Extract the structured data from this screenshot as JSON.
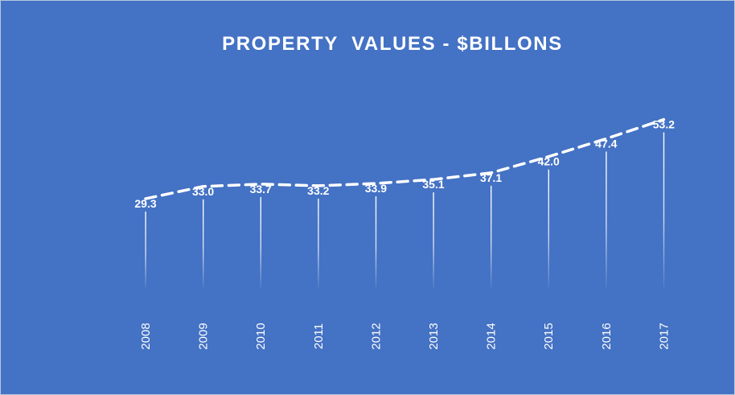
{
  "colors": {
    "background": "#4472c4",
    "line": "#ffffff",
    "text": "#ffffff"
  },
  "chart_data": {
    "type": "line",
    "title": "PROPERTY  VALUES - $BILLONS",
    "xlabel": "",
    "ylabel": "",
    "categories": [
      "2008",
      "2009",
      "2010",
      "2011",
      "2012",
      "2013",
      "2014",
      "2015",
      "2016",
      "2017"
    ],
    "series": [
      {
        "values": [
          29.3,
          33.0,
          33.7,
          33.2,
          33.9,
          35.1,
          37.1,
          42.0,
          47.4,
          53.2
        ],
        "labels": [
          "29.3",
          "33.0",
          "33.7",
          "33.2",
          "33.9",
          "35.1",
          "37.1",
          "42.0",
          "47.4",
          "53.2"
        ]
      }
    ],
    "line_style": "dashed",
    "drop_lines": true,
    "y_axis_visible": false,
    "grid": false,
    "legend": "none",
    "x_tick_rotation": "vertical"
  }
}
